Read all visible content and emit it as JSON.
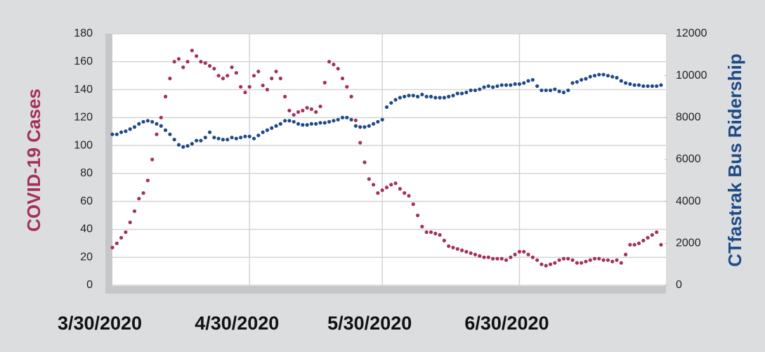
{
  "chart_data": {
    "type": "line",
    "y_label": "COVID-19 Cases",
    "y2_label": "CTfastrak Bus Ridership",
    "categories": [
      "3/30/2020",
      null,
      null,
      null,
      null,
      null,
      null,
      null,
      null,
      null,
      null,
      null,
      null,
      null,
      null,
      null,
      null,
      null,
      null,
      null,
      null,
      null,
      null,
      null,
      null,
      null,
      null,
      null,
      null,
      null,
      null,
      "4/30/2020",
      null,
      null,
      null,
      null,
      null,
      null,
      null,
      null,
      null,
      null,
      null,
      null,
      null,
      null,
      null,
      null,
      null,
      null,
      null,
      null,
      null,
      null,
      null,
      null,
      null,
      null,
      null,
      null,
      null,
      "5/30/2020",
      null,
      null,
      null,
      null,
      null,
      null,
      null,
      null,
      null,
      null,
      null,
      null,
      null,
      null,
      null,
      null,
      null,
      null,
      null,
      null,
      null,
      null,
      null,
      null,
      null,
      null,
      null,
      null,
      null,
      null,
      "6/30/2020",
      null,
      null,
      null,
      null,
      null,
      null,
      null,
      null,
      null,
      null,
      null,
      null,
      null,
      null,
      null,
      null,
      null,
      null,
      null,
      null,
      null,
      null,
      null,
      null,
      null,
      null,
      null,
      null,
      null,
      null,
      null,
      null
    ],
    "series": [
      {
        "name": "COVID-19 Cases",
        "color": "#a3305c",
        "axis": "y",
        "values": [
          27,
          30,
          34,
          38,
          45,
          53,
          62,
          66,
          75,
          90,
          108,
          120,
          135,
          148,
          160,
          162,
          156,
          160,
          168,
          164,
          160,
          159,
          157,
          155,
          150,
          148,
          150,
          156,
          152,
          142,
          138,
          142,
          150,
          153,
          143,
          140,
          148,
          153,
          148,
          135,
          125,
          122,
          124,
          125,
          127,
          126,
          124,
          128,
          145,
          160,
          158,
          155,
          148,
          142,
          135,
          118,
          102,
          88,
          76,
          72,
          66,
          68,
          70,
          72,
          73,
          69,
          66,
          64,
          58,
          50,
          42,
          38,
          38,
          37,
          36,
          32,
          28,
          27,
          26,
          25,
          24,
          23,
          22,
          21,
          20,
          20,
          19,
          19,
          19,
          18,
          20,
          22,
          24,
          24,
          22,
          20,
          18,
          15,
          14,
          15,
          16,
          18,
          19,
          19,
          18,
          16,
          16,
          17,
          18,
          19,
          19,
          18,
          18,
          17,
          18,
          16,
          22,
          29,
          29,
          30,
          32,
          34,
          36,
          38,
          29
        ]
      },
      {
        "name": "CTfastrak Bus Ridership",
        "color": "#1f4a87",
        "axis": "y2",
        "values": [
          7200,
          7200,
          7300,
          7350,
          7450,
          7550,
          7700,
          7800,
          7850,
          7800,
          7700,
          7600,
          7400,
          7200,
          6950,
          6700,
          6600,
          6650,
          6750,
          6900,
          6900,
          7050,
          7300,
          7050,
          7000,
          6950,
          6950,
          7050,
          7000,
          7050,
          7100,
          7100,
          7000,
          7150,
          7300,
          7400,
          7500,
          7600,
          7700,
          7850,
          7850,
          7800,
          7700,
          7650,
          7650,
          7700,
          7700,
          7750,
          7750,
          7800,
          7850,
          7900,
          8000,
          8000,
          7900,
          7600,
          7550,
          7550,
          7600,
          7700,
          7800,
          7900,
          8500,
          8700,
          8850,
          8950,
          9000,
          9050,
          9050,
          9000,
          9100,
          9000,
          9000,
          8950,
          8950,
          8950,
          9000,
          9050,
          9150,
          9150,
          9200,
          9300,
          9300,
          9350,
          9450,
          9500,
          9450,
          9500,
          9550,
          9550,
          9550,
          9600,
          9600,
          9650,
          9750,
          9800,
          9500,
          9300,
          9300,
          9300,
          9350,
          9250,
          9200,
          9300,
          9650,
          9700,
          9800,
          9850,
          9950,
          10000,
          10050,
          10050,
          10000,
          9950,
          9900,
          9750,
          9650,
          9600,
          9550,
          9550,
          9500,
          9500,
          9500,
          9500,
          9550
        ]
      }
    ],
    "ylim": [
      0,
      180
    ],
    "yticks": [
      0,
      20,
      40,
      60,
      80,
      100,
      120,
      140,
      160,
      180
    ],
    "y2lim": [
      0,
      12000
    ],
    "y2ticks": [
      0,
      2000,
      4000,
      6000,
      8000,
      10000,
      12000
    ],
    "grid": true
  }
}
